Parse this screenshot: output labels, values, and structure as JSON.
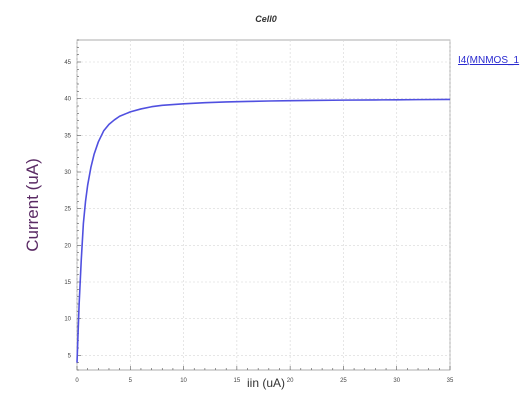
{
  "chart_data": {
    "type": "line",
    "title": "Cell0",
    "xlabel": "iin (uA)",
    "ylabel": "Current (uA)",
    "xlim": [
      0,
      35
    ],
    "ylim": [
      3,
      48
    ],
    "xticks": [
      "0",
      "5",
      "10",
      "15",
      "20",
      "25",
      "30",
      "35"
    ],
    "yticks": [
      "5",
      "10",
      "15",
      "20",
      "25",
      "30",
      "35",
      "40",
      "45"
    ],
    "grid": true,
    "legend_position": "top-right",
    "series": [
      {
        "name": "I4(MNMOS_1",
        "color": "#5050e0",
        "x": [
          0,
          0.2,
          0.4,
          0.6,
          0.8,
          1,
          1.3,
          1.6,
          2,
          2.5,
          3,
          3.5,
          4,
          5,
          6,
          7,
          8,
          9,
          10,
          12,
          14,
          16,
          18,
          20,
          22,
          25,
          28,
          30,
          32,
          35
        ],
        "y": [
          4,
          12,
          18,
          23,
          26,
          28.2,
          30.6,
          32.4,
          34.1,
          35.6,
          36.5,
          37.1,
          37.6,
          38.2,
          38.6,
          38.9,
          39.1,
          39.2,
          39.3,
          39.45,
          39.55,
          39.62,
          39.68,
          39.72,
          39.76,
          39.8,
          39.83,
          39.85,
          39.87,
          39.9
        ]
      }
    ]
  }
}
